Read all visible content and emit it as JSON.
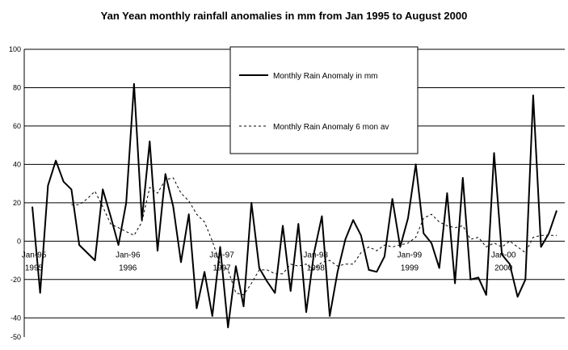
{
  "chart_data": {
    "type": "line",
    "title": "Yan Yean monthly rainfall anomalies in mm from Jan 1995 to August  2000",
    "xlabel": "",
    "ylabel": "",
    "ylim": [
      -50,
      100
    ],
    "y_ticks": [
      100,
      80,
      60,
      40,
      20,
      0,
      -20,
      -40,
      -50
    ],
    "y_tick_labels": [
      "100",
      "80",
      "60",
      "40",
      "20",
      "0",
      "-20",
      "-40",
      "-50"
    ],
    "x_tick_labels": [
      {
        "month": "Jan-95",
        "line1": "Jan-95",
        "line2": "1995"
      },
      {
        "month": "Jan-96",
        "line1": "Jan-96",
        "line2": "1996"
      },
      {
        "month": "Jan-97",
        "line1": "Jan-97",
        "line2": "1997"
      },
      {
        "month": "Jan-98",
        "line1": "Jan-98",
        "line2": "1998"
      },
      {
        "month": "Jan-99",
        "line1": "Jan-99",
        "line2": "1999"
      },
      {
        "month": "Jan-00",
        "line1": "Jan-00",
        "line2": "2000"
      }
    ],
    "grid": "horizontal",
    "legend_position": "top-center",
    "months": [
      "Jan-95",
      "Feb-95",
      "Mar-95",
      "Apr-95",
      "May-95",
      "Jun-95",
      "Jul-95",
      "Aug-95",
      "Sep-95",
      "Oct-95",
      "Nov-95",
      "Dec-95",
      "Jan-96",
      "Feb-96",
      "Mar-96",
      "Apr-96",
      "May-96",
      "Jun-96",
      "Jul-96",
      "Aug-96",
      "Sep-96",
      "Oct-96",
      "Nov-96",
      "Dec-96",
      "Jan-97",
      "Feb-97",
      "Mar-97",
      "Apr-97",
      "May-97",
      "Jun-97",
      "Jul-97",
      "Aug-97",
      "Sep-97",
      "Oct-97",
      "Nov-97",
      "Dec-97",
      "Jan-98",
      "Feb-98",
      "Mar-98",
      "Apr-98",
      "May-98",
      "Jun-98",
      "Jul-98",
      "Aug-98",
      "Sep-98",
      "Oct-98",
      "Nov-98",
      "Dec-98",
      "Jan-99",
      "Feb-99",
      "Mar-99",
      "Apr-99",
      "May-99",
      "Jun-99",
      "Jul-99",
      "Aug-99",
      "Sep-99",
      "Oct-99",
      "Nov-99",
      "Dec-99",
      "Jan-00",
      "Feb-00",
      "Mar-00",
      "Apr-00",
      "May-00",
      "Jun-00",
      "Jul-00",
      "Aug-00"
    ],
    "series": [
      {
        "name": "Monthly Rain Anomaly in mm",
        "style": "solid",
        "color": "#000000",
        "values": [
          18,
          -27,
          29,
          42,
          31,
          27,
          -2,
          -6,
          -10,
          27,
          13,
          -2,
          20,
          82,
          11,
          52,
          -5,
          35,
          18,
          -11,
          14,
          -35,
          -16,
          -39,
          -3,
          -45,
          -13,
          -34,
          20,
          -14,
          -21,
          -27,
          8,
          -26,
          9,
          -37,
          -6,
          13,
          -39,
          -16,
          1,
          11,
          3,
          -15,
          -16,
          -8,
          22,
          -3,
          12,
          40,
          4,
          -1,
          -14,
          25,
          -22,
          33,
          -20,
          -19,
          -28,
          46,
          -7,
          -12,
          -29,
          -20,
          76,
          -3,
          4,
          16
        ]
      },
      {
        "name": "Monthly Rain Anomaly 6 mon av",
        "style": "dashed",
        "color": "#000000",
        "values": [
          null,
          null,
          null,
          null,
          null,
          19,
          19,
          22,
          26,
          18,
          9,
          7,
          5,
          3,
          10,
          28,
          25,
          32,
          33,
          25,
          21,
          14,
          10,
          0,
          -12,
          -15,
          -27,
          -28,
          -22,
          -15,
          -15,
          -17,
          -17,
          -12,
          -13,
          -12,
          -15,
          -11,
          -10,
          -13,
          -12,
          -12,
          -6,
          -3,
          -5,
          -2,
          -3,
          -2,
          -1,
          2,
          12,
          14,
          10,
          8,
          7,
          8,
          1,
          2,
          -3,
          -1,
          -3,
          0,
          -3,
          -6,
          2,
          3,
          3,
          3
        ]
      }
    ]
  }
}
